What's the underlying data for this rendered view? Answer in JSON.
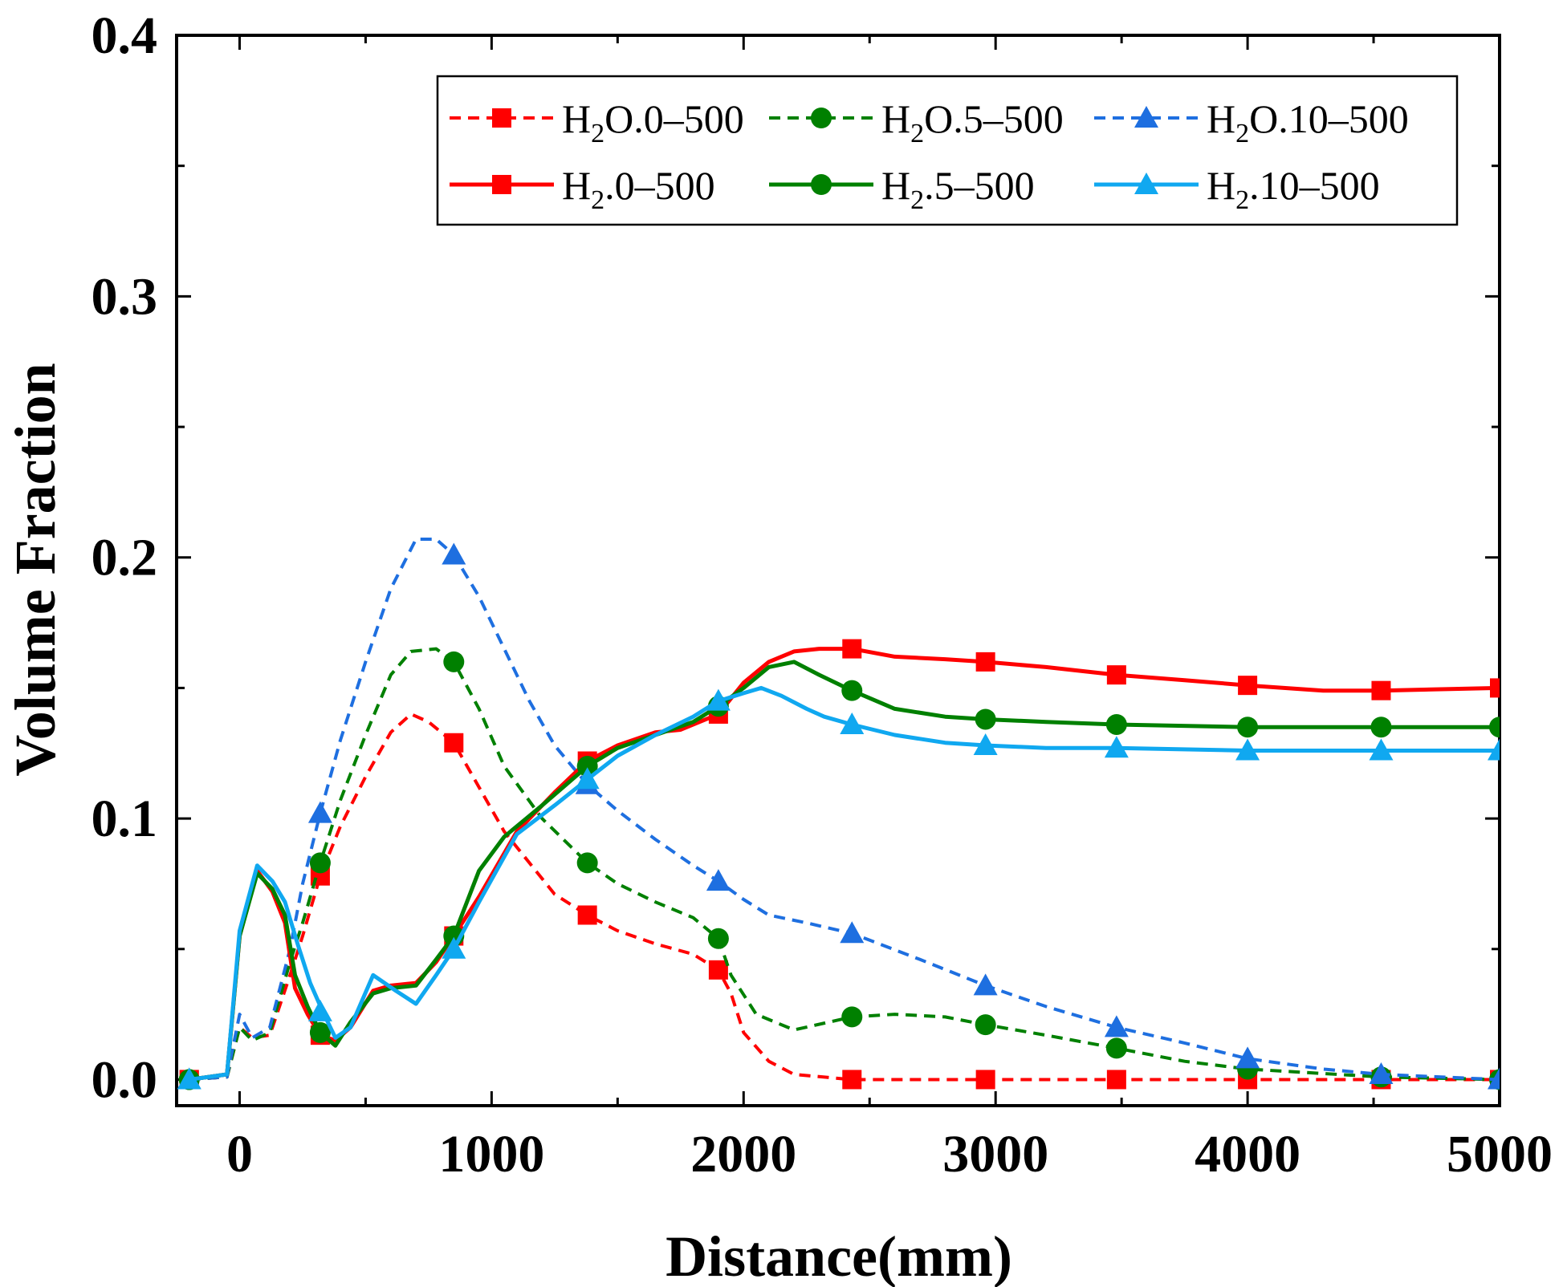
{
  "chart_data": {
    "type": "line",
    "title": "",
    "xlabel": "Distance(mm)",
    "ylabel": "Volume Fraction",
    "xlim": [
      -250,
      5000
    ],
    "ylim": [
      -0.01,
      0.4
    ],
    "x_ticks": [
      0,
      1000,
      2000,
      3000,
      4000,
      5000
    ],
    "x_tick_labels": [
      "0",
      "1000",
      "2000",
      "3000",
      "4000",
      "5000"
    ],
    "y_ticks": [
      0.0,
      0.1,
      0.2,
      0.3,
      0.4
    ],
    "y_tick_labels": [
      "0.0",
      "0.1",
      "0.2",
      "0.3",
      "0.4"
    ],
    "legend_position": "top-right",
    "series": [
      {
        "name": "H2O.0-500",
        "label_main": "H",
        "label_sub": "2",
        "label_rest": "O.0–500",
        "color": "#ff0000",
        "dash": true,
        "marker": "square",
        "points": [
          [
            -200,
            0
          ],
          [
            -50,
            0.001
          ],
          [
            0,
            0.02
          ],
          [
            50,
            0.016
          ],
          [
            120,
            0.017
          ],
          [
            200,
            0.04
          ],
          [
            250,
            0.055
          ],
          [
            320,
            0.078
          ],
          [
            400,
            0.097
          ],
          [
            500,
            0.116
          ],
          [
            600,
            0.133
          ],
          [
            680,
            0.14
          ],
          [
            750,
            0.137
          ],
          [
            850,
            0.129
          ],
          [
            950,
            0.112
          ],
          [
            1050,
            0.095
          ],
          [
            1150,
            0.083
          ],
          [
            1250,
            0.071
          ],
          [
            1380,
            0.063
          ],
          [
            1500,
            0.057
          ],
          [
            1650,
            0.052
          ],
          [
            1800,
            0.048
          ],
          [
            1900,
            0.042
          ],
          [
            1950,
            0.033
          ],
          [
            2000,
            0.018
          ],
          [
            2100,
            0.007
          ],
          [
            2200,
            0.002
          ],
          [
            2430,
            0.0
          ],
          [
            2700,
            0.0
          ],
          [
            2960,
            0.0
          ],
          [
            3480,
            0.0
          ],
          [
            4000,
            0.0
          ],
          [
            4530,
            0.0
          ],
          [
            5000,
            0.0
          ]
        ],
        "markers": [
          [
            -200,
            0
          ],
          [
            320,
            0.078
          ],
          [
            850,
            0.129
          ],
          [
            1380,
            0.063
          ],
          [
            1900,
            0.042
          ],
          [
            2430,
            0.0
          ],
          [
            2960,
            0.0
          ],
          [
            3480,
            0.0
          ],
          [
            4000,
            0.0
          ],
          [
            4530,
            0.0
          ],
          [
            5000,
            0.0
          ]
        ]
      },
      {
        "name": "H2O.5-500",
        "label_main": "H",
        "label_sub": "2",
        "label_rest": "O.5–500",
        "color": "#008000",
        "dash": true,
        "marker": "circle",
        "points": [
          [
            -200,
            0
          ],
          [
            -50,
            0.001
          ],
          [
            0,
            0.02
          ],
          [
            50,
            0.015
          ],
          [
            120,
            0.018
          ],
          [
            200,
            0.045
          ],
          [
            250,
            0.06
          ],
          [
            320,
            0.083
          ],
          [
            400,
            0.107
          ],
          [
            500,
            0.132
          ],
          [
            600,
            0.155
          ],
          [
            680,
            0.164
          ],
          [
            780,
            0.165
          ],
          [
            850,
            0.16
          ],
          [
            950,
            0.142
          ],
          [
            1050,
            0.12
          ],
          [
            1200,
            0.1
          ],
          [
            1380,
            0.083
          ],
          [
            1500,
            0.075
          ],
          [
            1650,
            0.068
          ],
          [
            1800,
            0.062
          ],
          [
            1900,
            0.054
          ],
          [
            1950,
            0.04
          ],
          [
            2050,
            0.025
          ],
          [
            2200,
            0.019
          ],
          [
            2430,
            0.024
          ],
          [
            2600,
            0.025
          ],
          [
            2800,
            0.024
          ],
          [
            2960,
            0.021
          ],
          [
            3200,
            0.017
          ],
          [
            3480,
            0.012
          ],
          [
            3750,
            0.007
          ],
          [
            4000,
            0.004
          ],
          [
            4530,
            0.001
          ],
          [
            5000,
            0.0
          ]
        ],
        "markers": [
          [
            -200,
            0
          ],
          [
            320,
            0.083
          ],
          [
            850,
            0.16
          ],
          [
            1380,
            0.083
          ],
          [
            1900,
            0.054
          ],
          [
            2430,
            0.024
          ],
          [
            2960,
            0.021
          ],
          [
            3480,
            0.012
          ],
          [
            4000,
            0.004
          ],
          [
            4530,
            0.001
          ],
          [
            5000,
            0.0
          ]
        ]
      },
      {
        "name": "H2O.10-500",
        "label_main": "H",
        "label_sub": "2",
        "label_rest": "O.10–500",
        "color": "#1e6fe0",
        "dash": true,
        "marker": "triangle",
        "points": [
          [
            -200,
            0
          ],
          [
            -50,
            0.001
          ],
          [
            0,
            0.025
          ],
          [
            50,
            0.016
          ],
          [
            120,
            0.02
          ],
          [
            200,
            0.05
          ],
          [
            250,
            0.075
          ],
          [
            320,
            0.102
          ],
          [
            400,
            0.13
          ],
          [
            500,
            0.16
          ],
          [
            600,
            0.188
          ],
          [
            700,
            0.207
          ],
          [
            780,
            0.207
          ],
          [
            850,
            0.201
          ],
          [
            950,
            0.185
          ],
          [
            1050,
            0.165
          ],
          [
            1150,
            0.145
          ],
          [
            1250,
            0.128
          ],
          [
            1380,
            0.113
          ],
          [
            1500,
            0.103
          ],
          [
            1650,
            0.092
          ],
          [
            1800,
            0.082
          ],
          [
            1900,
            0.076
          ],
          [
            2000,
            0.069
          ],
          [
            2100,
            0.063
          ],
          [
            2250,
            0.06
          ],
          [
            2430,
            0.056
          ],
          [
            2700,
            0.046
          ],
          [
            2960,
            0.036
          ],
          [
            3200,
            0.028
          ],
          [
            3480,
            0.02
          ],
          [
            3750,
            0.014
          ],
          [
            4000,
            0.008
          ],
          [
            4300,
            0.004
          ],
          [
            4530,
            0.002
          ],
          [
            5000,
            0.0
          ]
        ],
        "markers": [
          [
            -200,
            0
          ],
          [
            320,
            0.102
          ],
          [
            850,
            0.201
          ],
          [
            1380,
            0.113
          ],
          [
            1900,
            0.076
          ],
          [
            2430,
            0.056
          ],
          [
            2960,
            0.036
          ],
          [
            3480,
            0.02
          ],
          [
            4000,
            0.008
          ],
          [
            4530,
            0.002
          ],
          [
            5000,
            0.0
          ]
        ]
      },
      {
        "name": "H2.0-500",
        "label_main": "H",
        "label_sub": "2",
        "label_rest": ".0–500",
        "color": "#ff0000",
        "dash": false,
        "marker": "square",
        "points": [
          [
            -200,
            0
          ],
          [
            -50,
            0.002
          ],
          [
            0,
            0.055
          ],
          [
            70,
            0.08
          ],
          [
            130,
            0.072
          ],
          [
            180,
            0.06
          ],
          [
            220,
            0.035
          ],
          [
            270,
            0.025
          ],
          [
            320,
            0.017
          ],
          [
            380,
            0.015
          ],
          [
            440,
            0.02
          ],
          [
            530,
            0.034
          ],
          [
            600,
            0.036
          ],
          [
            700,
            0.037
          ],
          [
            780,
            0.045
          ],
          [
            850,
            0.055
          ],
          [
            950,
            0.07
          ],
          [
            1100,
            0.095
          ],
          [
            1250,
            0.11
          ],
          [
            1380,
            0.122
          ],
          [
            1500,
            0.128
          ],
          [
            1650,
            0.133
          ],
          [
            1750,
            0.134
          ],
          [
            1900,
            0.14
          ],
          [
            2000,
            0.152
          ],
          [
            2100,
            0.16
          ],
          [
            2200,
            0.164
          ],
          [
            2300,
            0.165
          ],
          [
            2430,
            0.165
          ],
          [
            2600,
            0.162
          ],
          [
            2800,
            0.161
          ],
          [
            2960,
            0.16
          ],
          [
            3200,
            0.158
          ],
          [
            3480,
            0.155
          ],
          [
            3750,
            0.153
          ],
          [
            4000,
            0.151
          ],
          [
            4300,
            0.149
          ],
          [
            4530,
            0.149
          ],
          [
            5000,
            0.15
          ]
        ],
        "markers": [
          [
            -200,
            0
          ],
          [
            320,
            0.017
          ],
          [
            850,
            0.055
          ],
          [
            1380,
            0.122
          ],
          [
            1900,
            0.14
          ],
          [
            2430,
            0.165
          ],
          [
            2960,
            0.16
          ],
          [
            3480,
            0.155
          ],
          [
            4000,
            0.151
          ],
          [
            4530,
            0.149
          ],
          [
            5000,
            0.15
          ]
        ]
      },
      {
        "name": "H2.5-500",
        "label_main": "H",
        "label_sub": "2",
        "label_rest": ".5–500",
        "color": "#008000",
        "dash": false,
        "marker": "circle",
        "points": [
          [
            -200,
            0
          ],
          [
            -50,
            0.002
          ],
          [
            0,
            0.055
          ],
          [
            70,
            0.079
          ],
          [
            130,
            0.073
          ],
          [
            180,
            0.063
          ],
          [
            220,
            0.04
          ],
          [
            270,
            0.028
          ],
          [
            320,
            0.018
          ],
          [
            380,
            0.013
          ],
          [
            440,
            0.022
          ],
          [
            530,
            0.033
          ],
          [
            600,
            0.035
          ],
          [
            700,
            0.036
          ],
          [
            780,
            0.046
          ],
          [
            850,
            0.055
          ],
          [
            950,
            0.08
          ],
          [
            1050,
            0.093
          ],
          [
            1200,
            0.105
          ],
          [
            1380,
            0.12
          ],
          [
            1500,
            0.127
          ],
          [
            1650,
            0.132
          ],
          [
            1800,
            0.137
          ],
          [
            1900,
            0.143
          ],
          [
            2000,
            0.15
          ],
          [
            2100,
            0.158
          ],
          [
            2200,
            0.16
          ],
          [
            2300,
            0.155
          ],
          [
            2430,
            0.149
          ],
          [
            2600,
            0.142
          ],
          [
            2800,
            0.139
          ],
          [
            2960,
            0.138
          ],
          [
            3200,
            0.137
          ],
          [
            3480,
            0.136
          ],
          [
            4000,
            0.135
          ],
          [
            4530,
            0.135
          ],
          [
            5000,
            0.135
          ]
        ],
        "markers": [
          [
            -200,
            0
          ],
          [
            320,
            0.018
          ],
          [
            850,
            0.055
          ],
          [
            1380,
            0.12
          ],
          [
            1900,
            0.143
          ],
          [
            2430,
            0.149
          ],
          [
            2960,
            0.138
          ],
          [
            3480,
            0.136
          ],
          [
            4000,
            0.135
          ],
          [
            4530,
            0.135
          ],
          [
            5000,
            0.135
          ]
        ]
      },
      {
        "name": "H2.10-500",
        "label_main": "H",
        "label_sub": "2",
        "label_rest": ".10–500",
        "color": "#10a8f0",
        "dash": false,
        "marker": "triangle",
        "points": [
          [
            -200,
            0
          ],
          [
            -50,
            0.002
          ],
          [
            0,
            0.057
          ],
          [
            70,
            0.082
          ],
          [
            130,
            0.076
          ],
          [
            180,
            0.068
          ],
          [
            230,
            0.052
          ],
          [
            280,
            0.037
          ],
          [
            330,
            0.026
          ],
          [
            380,
            0.016
          ],
          [
            440,
            0.02
          ],
          [
            530,
            0.04
          ],
          [
            620,
            0.034
          ],
          [
            700,
            0.029
          ],
          [
            780,
            0.04
          ],
          [
            850,
            0.05
          ],
          [
            950,
            0.068
          ],
          [
            1100,
            0.094
          ],
          [
            1250,
            0.105
          ],
          [
            1380,
            0.115
          ],
          [
            1500,
            0.124
          ],
          [
            1650,
            0.132
          ],
          [
            1800,
            0.139
          ],
          [
            1900,
            0.145
          ],
          [
            2000,
            0.148
          ],
          [
            2070,
            0.15
          ],
          [
            2150,
            0.147
          ],
          [
            2250,
            0.142
          ],
          [
            2320,
            0.139
          ],
          [
            2430,
            0.136
          ],
          [
            2600,
            0.132
          ],
          [
            2800,
            0.129
          ],
          [
            2960,
            0.128
          ],
          [
            3200,
            0.127
          ],
          [
            3480,
            0.127
          ],
          [
            4000,
            0.126
          ],
          [
            4530,
            0.126
          ],
          [
            5000,
            0.126
          ]
        ],
        "markers": [
          [
            -200,
            0
          ],
          [
            320,
            0.026
          ],
          [
            850,
            0.05
          ],
          [
            1380,
            0.115
          ],
          [
            1900,
            0.145
          ],
          [
            2430,
            0.136
          ],
          [
            2960,
            0.128
          ],
          [
            3480,
            0.127
          ],
          [
            4000,
            0.126
          ],
          [
            4530,
            0.126
          ],
          [
            5000,
            0.126
          ]
        ]
      }
    ]
  }
}
